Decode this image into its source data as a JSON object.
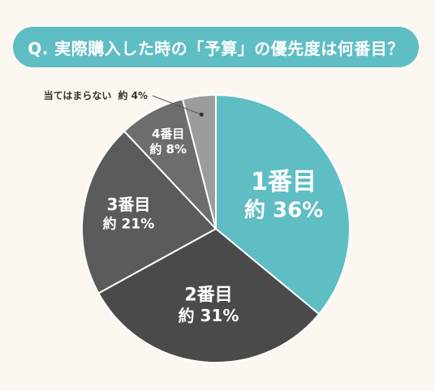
{
  "title": "Q. 実際購入した時の「予算」の優先度は何番目？",
  "colors": {
    "background": "#fcf8f1",
    "banner": "#5fbdc4",
    "slice_border": "#ffffff",
    "outside_label": "#333333"
  },
  "chart_data": {
    "type": "pie",
    "start": "12 o'clock, clockwise",
    "categories": [
      "1番目",
      "2番目",
      "3番目",
      "4番目",
      "当てはまらない"
    ],
    "values": [
      36,
      31,
      21,
      8,
      4
    ],
    "value_labels": [
      "約 36%",
      "約 31%",
      "約 21%",
      "約 8%",
      "約 4%"
    ],
    "colors": [
      "#5fbdc4",
      "#4a4a4a",
      "#5b5b5b",
      "#6d6d6d",
      "#9c9c9c"
    ],
    "outside_label_index": 4
  }
}
